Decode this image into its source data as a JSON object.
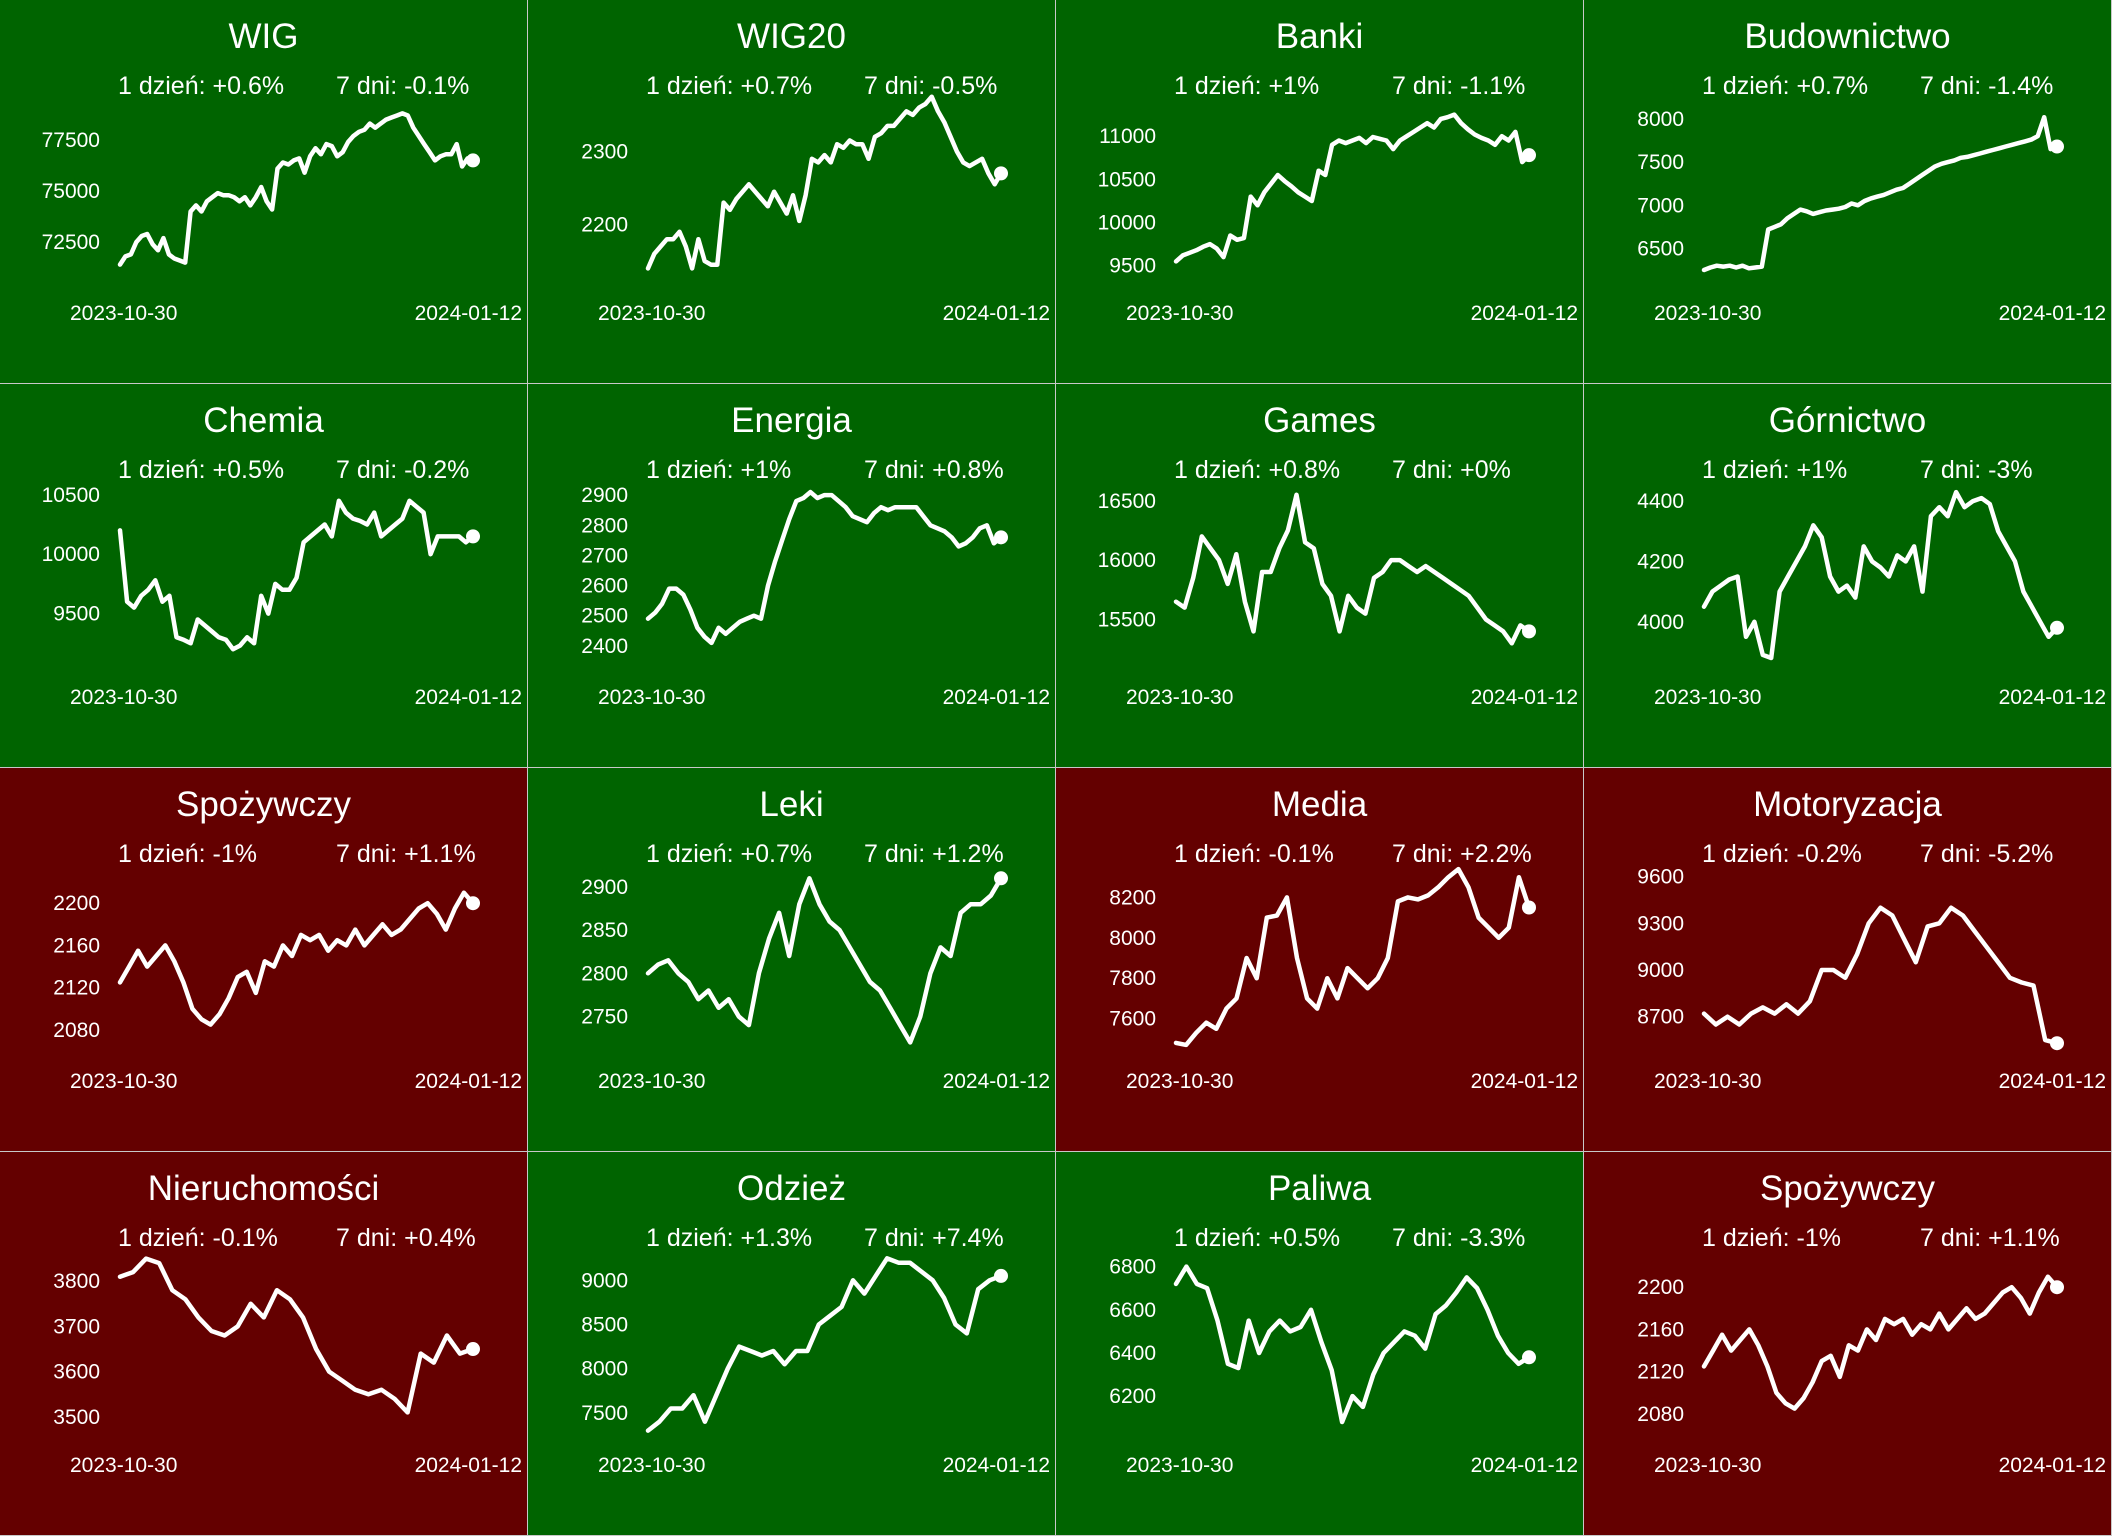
{
  "colors": {
    "up": "#006400",
    "down": "#640000",
    "line": "#ffffff",
    "separator": "#c8c8c8"
  },
  "labels": {
    "day": "1 dzień: ",
    "week": "7 dni: "
  },
  "chart_data": [
    {
      "type": "line",
      "title": "WIG",
      "change_1d": "+0.6%",
      "change_7d": "-0.1%",
      "trend": "up",
      "x_start": "2023-10-30",
      "x_end": "2024-01-12",
      "yticks": [
        72500,
        75000,
        77500
      ],
      "ylim": [
        70500,
        79800
      ],
      "y": [
        71400,
        71800,
        71900,
        72500,
        72800,
        72900,
        72400,
        72100,
        72700,
        71900,
        71700,
        71600,
        71500,
        74000,
        74300,
        74000,
        74500,
        74700,
        74900,
        74800,
        74800,
        74700,
        74500,
        74700,
        74300,
        74700,
        75200,
        74500,
        74100,
        76100,
        76400,
        76300,
        76500,
        76600,
        75900,
        76700,
        77100,
        76800,
        77300,
        77200,
        76700,
        76900,
        77400,
        77700,
        77900,
        78000,
        78300,
        78100,
        78300,
        78500,
        78600,
        78700,
        78800,
        78700,
        78100,
        77700,
        77300,
        76900,
        76500,
        76700,
        76800,
        76800,
        77300,
        76200,
        76600,
        76500
      ]
    },
    {
      "type": "line",
      "title": "WIG20",
      "change_1d": "+0.7%",
      "change_7d": "-0.5%",
      "trend": "up",
      "x_start": "2023-10-30",
      "x_end": "2024-01-12",
      "yticks": [
        2200,
        2300
      ],
      "ylim": [
        2120,
        2380
      ],
      "y": [
        2140,
        2160,
        2170,
        2180,
        2180,
        2190,
        2170,
        2140,
        2180,
        2150,
        2145,
        2145,
        2230,
        2220,
        2235,
        2245,
        2255,
        2245,
        2235,
        2225,
        2245,
        2230,
        2215,
        2240,
        2205,
        2240,
        2290,
        2285,
        2295,
        2285,
        2310,
        2305,
        2315,
        2310,
        2310,
        2290,
        2320,
        2325,
        2335,
        2335,
        2345,
        2355,
        2350,
        2360,
        2365,
        2375,
        2355,
        2340,
        2320,
        2300,
        2285,
        2280,
        2285,
        2290,
        2270,
        2255,
        2270
      ]
    },
    {
      "type": "line",
      "title": "Banki",
      "change_1d": "+1%",
      "change_7d": "-1.1%",
      "trend": "up",
      "x_start": "2023-10-30",
      "x_end": "2024-01-12",
      "yticks": [
        9500,
        10000,
        10500,
        11000
      ],
      "ylim": [
        9300,
        11500
      ],
      "y": [
        9550,
        9620,
        9650,
        9680,
        9720,
        9750,
        9700,
        9600,
        9850,
        9800,
        9820,
        10300,
        10200,
        10350,
        10450,
        10550,
        10480,
        10420,
        10350,
        10300,
        10250,
        10600,
        10550,
        10900,
        10950,
        10920,
        10950,
        10980,
        10920,
        10990,
        10970,
        10950,
        10850,
        10950,
        11000,
        11050,
        11100,
        11150,
        11100,
        11200,
        11220,
        11250,
        11150,
        11080,
        11020,
        10980,
        10950,
        10900,
        11000,
        10950,
        11050,
        10700,
        10780
      ]
    },
    {
      "type": "line",
      "title": "Budownictwo",
      "change_1d": "+0.7%",
      "change_7d": "-1.4%",
      "trend": "up",
      "x_start": "2023-10-30",
      "x_end": "2024-01-12",
      "yticks": [
        6500,
        7000,
        7500,
        8000
      ],
      "ylim": [
        6100,
        8300
      ],
      "y": [
        6250,
        6280,
        6300,
        6290,
        6300,
        6280,
        6300,
        6270,
        6280,
        6290,
        6720,
        6750,
        6780,
        6850,
        6900,
        6950,
        6930,
        6900,
        6920,
        6940,
        6950,
        6960,
        6980,
        7020,
        7000,
        7050,
        7080,
        7100,
        7120,
        7150,
        7180,
        7200,
        7250,
        7300,
        7350,
        7400,
        7450,
        7480,
        7500,
        7520,
        7550,
        7560,
        7580,
        7600,
        7620,
        7640,
        7660,
        7680,
        7700,
        7720,
        7740,
        7760,
        7800,
        8020,
        7650,
        7680
      ]
    },
    {
      "type": "line",
      "title": "Chemia",
      "change_1d": "+0.5%",
      "change_7d": "-0.2%",
      "trend": "up",
      "x_start": "2023-10-30",
      "x_end": "2024-01-12",
      "yticks": [
        9500,
        10000,
        10500
      ],
      "ylim": [
        9050,
        10650
      ],
      "y": [
        10200,
        9600,
        9550,
        9650,
        9700,
        9780,
        9600,
        9650,
        9300,
        9280,
        9250,
        9450,
        9400,
        9350,
        9300,
        9280,
        9200,
        9230,
        9300,
        9250,
        9650,
        9500,
        9750,
        9700,
        9700,
        9800,
        10100,
        10150,
        10200,
        10250,
        10150,
        10450,
        10350,
        10300,
        10280,
        10250,
        10350,
        10150,
        10200,
        10250,
        10300,
        10450,
        10400,
        10350,
        10000,
        10150,
        10150,
        10150,
        10150,
        10100,
        10150
      ]
    },
    {
      "type": "line",
      "title": "Energia",
      "change_1d": "+1%",
      "change_7d": "+0.8%",
      "trend": "up",
      "x_start": "2023-10-30",
      "x_end": "2024-01-12",
      "yticks": [
        2400,
        2500,
        2600,
        2700,
        2800,
        2900
      ],
      "ylim": [
        2330,
        2960
      ],
      "y": [
        2490,
        2510,
        2540,
        2590,
        2590,
        2570,
        2520,
        2460,
        2430,
        2410,
        2460,
        2440,
        2460,
        2480,
        2490,
        2500,
        2490,
        2600,
        2680,
        2750,
        2820,
        2880,
        2890,
        2910,
        2890,
        2900,
        2900,
        2880,
        2860,
        2830,
        2820,
        2810,
        2840,
        2860,
        2850,
        2860,
        2860,
        2860,
        2860,
        2830,
        2800,
        2790,
        2780,
        2760,
        2730,
        2740,
        2760,
        2790,
        2800,
        2740,
        2760
      ]
    },
    {
      "type": "line",
      "title": "Games",
      "change_1d": "+0.8%",
      "change_7d": "+0%",
      "trend": "up",
      "x_start": "2023-10-30",
      "x_end": "2024-01-12",
      "yticks": [
        15500,
        16000,
        16500
      ],
      "ylim": [
        15100,
        16700
      ],
      "y": [
        15650,
        15600,
        15850,
        16200,
        16100,
        16000,
        15800,
        16050,
        15650,
        15400,
        15900,
        15900,
        16100,
        16250,
        16550,
        16150,
        16100,
        15800,
        15700,
        15400,
        15700,
        15600,
        15550,
        15850,
        15900,
        16000,
        16000,
        15950,
        15900,
        15950,
        15900,
        15850,
        15800,
        15750,
        15700,
        15600,
        15500,
        15450,
        15400,
        15300,
        15450,
        15400
      ]
    },
    {
      "type": "line",
      "title": "Górnictwo",
      "change_1d": "+1%",
      "change_7d": "-3%",
      "trend": "up",
      "x_start": "2023-10-30",
      "x_end": "2024-01-12",
      "yticks": [
        4000,
        4200,
        4400
      ],
      "ylim": [
        3850,
        4480
      ],
      "y": [
        4050,
        4100,
        4120,
        4140,
        4150,
        3950,
        4000,
        3890,
        3880,
        4100,
        4150,
        4200,
        4250,
        4320,
        4280,
        4150,
        4100,
        4120,
        4080,
        4250,
        4200,
        4180,
        4150,
        4220,
        4200,
        4250,
        4100,
        4350,
        4380,
        4350,
        4430,
        4380,
        4400,
        4410,
        4390,
        4300,
        4250,
        4200,
        4100,
        4050,
        4000,
        3950,
        3980
      ]
    },
    {
      "type": "line",
      "title": "Spożywczy",
      "change_1d": "-1%",
      "change_7d": "+1.1%",
      "trend": "down",
      "x_start": "2023-10-30",
      "x_end": "2024-01-12",
      "yticks": [
        2080,
        2120,
        2160,
        2200
      ],
      "ylim": [
        2060,
        2240
      ],
      "y": [
        2125,
        2140,
        2155,
        2140,
        2150,
        2160,
        2145,
        2125,
        2100,
        2090,
        2085,
        2095,
        2110,
        2130,
        2135,
        2115,
        2145,
        2140,
        2160,
        2150,
        2170,
        2165,
        2170,
        2155,
        2165,
        2160,
        2175,
        2160,
        2170,
        2180,
        2170,
        2175,
        2185,
        2195,
        2200,
        2190,
        2175,
        2195,
        2210,
        2200
      ]
    },
    {
      "type": "line",
      "title": "Leki",
      "change_1d": "+0.7%",
      "change_7d": "+1.2%",
      "trend": "up",
      "x_start": "2023-10-30",
      "x_end": "2024-01-12",
      "yticks": [
        2750,
        2800,
        2850,
        2900
      ],
      "ylim": [
        2710,
        2930
      ],
      "y": [
        2800,
        2810,
        2815,
        2800,
        2790,
        2770,
        2780,
        2760,
        2770,
        2750,
        2740,
        2800,
        2840,
        2870,
        2820,
        2880,
        2910,
        2880,
        2860,
        2850,
        2830,
        2810,
        2790,
        2780,
        2760,
        2740,
        2720,
        2750,
        2800,
        2830,
        2820,
        2870,
        2880,
        2880,
        2890,
        2910
      ]
    },
    {
      "type": "line",
      "title": "Media",
      "change_1d": "-0.1%",
      "change_7d": "+2.2%",
      "trend": "down",
      "x_start": "2023-10-30",
      "x_end": "2024-01-12",
      "yticks": [
        7600,
        7800,
        8000,
        8200
      ],
      "ylim": [
        7440,
        8380
      ],
      "y": [
        7480,
        7470,
        7530,
        7580,
        7550,
        7650,
        7700,
        7900,
        7800,
        8100,
        8110,
        8200,
        7900,
        7700,
        7650,
        7800,
        7700,
        7850,
        7800,
        7750,
        7800,
        7900,
        8180,
        8200,
        8190,
        8210,
        8250,
        8300,
        8340,
        8250,
        8100,
        8050,
        8000,
        8050,
        8300,
        8150
      ]
    },
    {
      "type": "line",
      "title": "Motoryzacja",
      "change_1d": "-0.2%",
      "change_7d": "-5.2%",
      "trend": "down",
      "x_start": "2023-10-30",
      "x_end": "2024-01-12",
      "yticks": [
        8700,
        9000,
        9300,
        9600
      ],
      "ylim": [
        8480,
        9700
      ],
      "y": [
        8720,
        8650,
        8700,
        8650,
        8720,
        8760,
        8720,
        8780,
        8720,
        8800,
        9000,
        9000,
        8950,
        9100,
        9300,
        9400,
        9350,
        9200,
        9050,
        9280,
        9300,
        9400,
        9350,
        9250,
        9150,
        9050,
        8950,
        8920,
        8900,
        8550,
        8530
      ]
    },
    {
      "type": "line",
      "title": "Nieruchomości",
      "change_1d": "-0.1%",
      "change_7d": "+0.4%",
      "trend": "down",
      "x_start": "2023-10-30",
      "x_end": "2024-01-12",
      "yticks": [
        3500,
        3600,
        3700,
        3800
      ],
      "ylim": [
        3460,
        3880
      ],
      "y": [
        3810,
        3820,
        3850,
        3840,
        3780,
        3760,
        3720,
        3690,
        3680,
        3700,
        3750,
        3720,
        3780,
        3760,
        3720,
        3650,
        3600,
        3580,
        3560,
        3550,
        3560,
        3540,
        3510,
        3640,
        3620,
        3680,
        3640,
        3650
      ]
    },
    {
      "type": "line",
      "title": "Odzież",
      "change_1d": "+1.3%",
      "change_7d": "+7.4%",
      "trend": "up",
      "x_start": "2023-10-30",
      "x_end": "2024-01-12",
      "yticks": [
        7500,
        8000,
        8500,
        9000
      ],
      "ylim": [
        7250,
        9400
      ],
      "y": [
        7300,
        7400,
        7550,
        7550,
        7700,
        7400,
        7700,
        8000,
        8250,
        8200,
        8150,
        8200,
        8050,
        8200,
        8200,
        8500,
        8600,
        8700,
        9000,
        8850,
        9050,
        9250,
        9200,
        9200,
        9100,
        9000,
        8800,
        8500,
        8400,
        8900,
        9000,
        9050
      ]
    },
    {
      "type": "line",
      "title": "Paliwa",
      "change_1d": "+0.5%",
      "change_7d": "-3.3%",
      "trend": "up",
      "x_start": "2023-10-30",
      "x_end": "2024-01-12",
      "yticks": [
        6200,
        6400,
        6600,
        6800
      ],
      "ylim": [
        6020,
        6900
      ],
      "y": [
        6720,
        6800,
        6720,
        6700,
        6550,
        6350,
        6330,
        6550,
        6400,
        6500,
        6550,
        6500,
        6520,
        6600,
        6450,
        6320,
        6080,
        6200,
        6150,
        6300,
        6400,
        6450,
        6500,
        6480,
        6420,
        6580,
        6620,
        6680,
        6750,
        6700,
        6600,
        6480,
        6400,
        6350,
        6380
      ]
    },
    {
      "type": "line",
      "title": "Spożywczy",
      "change_1d": "-1%",
      "change_7d": "+1.1%",
      "trend": "down",
      "x_start": "2023-10-30",
      "x_end": "2024-01-12",
      "yticks": [
        2080,
        2120,
        2160,
        2200
      ],
      "ylim": [
        2060,
        2240
      ],
      "y": [
        2125,
        2140,
        2155,
        2140,
        2150,
        2160,
        2145,
        2125,
        2100,
        2090,
        2085,
        2095,
        2110,
        2130,
        2135,
        2115,
        2145,
        2140,
        2160,
        2150,
        2170,
        2165,
        2170,
        2155,
        2165,
        2160,
        2175,
        2160,
        2170,
        2180,
        2170,
        2175,
        2185,
        2195,
        2200,
        2190,
        2175,
        2195,
        2210,
        2200
      ]
    }
  ]
}
